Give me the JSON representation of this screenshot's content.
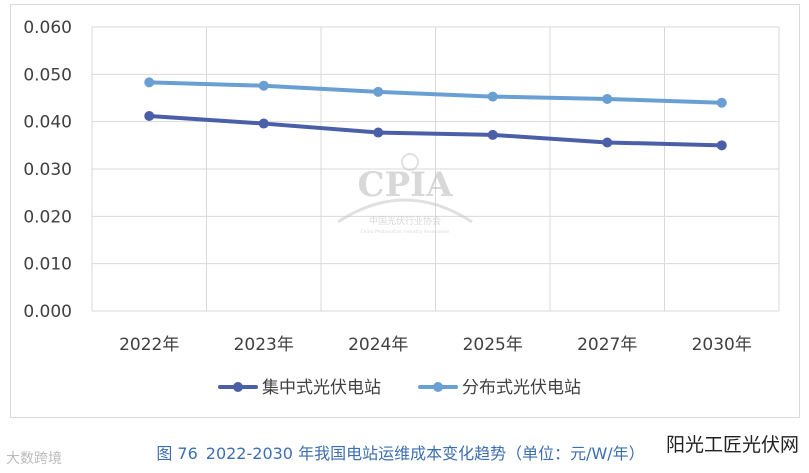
{
  "chart_data": {
    "type": "line",
    "title": "",
    "xlabel": "",
    "ylabel": "",
    "categories": [
      "2022年",
      "2023年",
      "2024年",
      "2025年",
      "2027年",
      "2030年"
    ],
    "y_ticks": [
      "0.000",
      "0.010",
      "0.020",
      "0.030",
      "0.040",
      "0.050",
      "0.060"
    ],
    "ylim": [
      0,
      0.06
    ],
    "grid": true,
    "legend_position": "bottom",
    "series": [
      {
        "name": "集中式光伏电站",
        "color": "#4a5fa8",
        "values": [
          0.0412,
          0.0396,
          0.0377,
          0.0372,
          0.0356,
          0.035
        ]
      },
      {
        "name": "分布式光伏电站",
        "color": "#6a9fd4",
        "values": [
          0.0483,
          0.0476,
          0.0463,
          0.0453,
          0.0448,
          0.044
        ]
      }
    ]
  },
  "caption": {
    "figure_no": "图 76",
    "text": "2022-2030 年我国电站运维成本变化趋势（单位：元/W/年）"
  },
  "watermark": {
    "logo": "CPIA",
    "line1": "中国光伏行业协会",
    "line2": "China Photovoltaic Industry Association"
  },
  "corner_left": "大数跨境",
  "corner_right": "阳光工匠光伏网"
}
